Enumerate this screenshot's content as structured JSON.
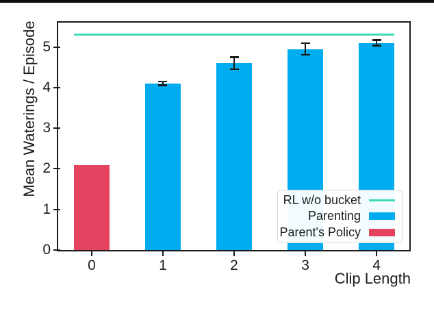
{
  "chart_data": {
    "type": "bar",
    "title": "",
    "xlabel": "Clip Length",
    "ylabel": "Mean Waterings / Episode",
    "categories": [
      "0",
      "1",
      "2",
      "3",
      "4"
    ],
    "series": [
      {
        "name": "Parenting",
        "color": "#00acf0",
        "values": [
          null,
          4.1,
          4.6,
          4.95,
          5.1
        ],
        "errors": [
          null,
          0.05,
          0.15,
          0.15,
          0.07
        ]
      },
      {
        "name": "Parent's Policy",
        "color": "#e4425f",
        "values": [
          2.1,
          null,
          null,
          null,
          null
        ],
        "errors": [
          null,
          null,
          null,
          null,
          null
        ]
      }
    ],
    "baseline": {
      "label": "RL w/o bucket",
      "value": 5.3,
      "color": "#3cdbb8",
      "x_start": -0.25,
      "x_end": 4.25
    },
    "xlim": [
      -0.47,
      4.46
    ],
    "ylim": [
      0,
      5.6
    ],
    "yticks": [
      "0",
      "1",
      "2",
      "3",
      "4",
      "5"
    ],
    "xticks": [
      "0",
      "1",
      "2",
      "3",
      "4"
    ],
    "bar_width": 0.5,
    "grid": false,
    "error_bar_color": "#1a1a1a",
    "legend": {
      "position": "lower right",
      "entries": [
        {
          "label": "RL w/o bucket",
          "swatch": "line",
          "color": "#3cdbb8"
        },
        {
          "label": "Parenting",
          "swatch": "rect",
          "color": "#00acf0"
        },
        {
          "label": "Parent's Policy",
          "swatch": "rect",
          "color": "#e4425f"
        }
      ]
    }
  }
}
